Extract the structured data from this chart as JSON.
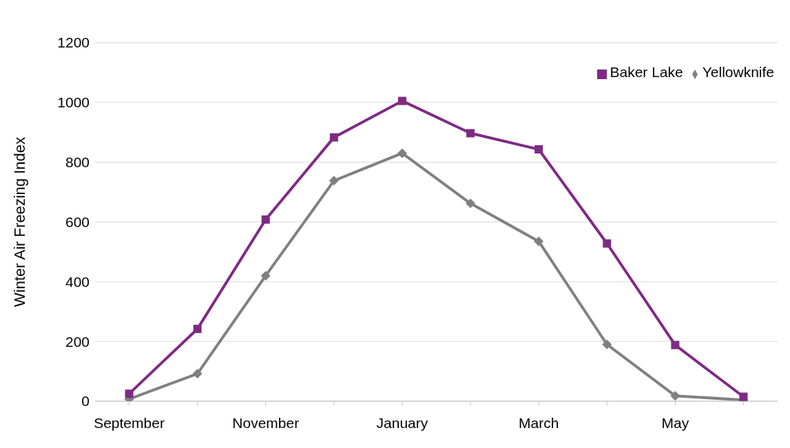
{
  "chart_data": {
    "type": "line",
    "ylabel": "Winter Air Freezing Index",
    "categories": [
      "September",
      null,
      "November",
      null,
      "January",
      null,
      "March",
      null,
      "May",
      null
    ],
    "series": [
      {
        "name": "Yellowknife",
        "color": "#808080",
        "marker": "diamond",
        "values": [
          7,
          92,
          420,
          738,
          830,
          662,
          535,
          190,
          18,
          4
        ]
      },
      {
        "name": "Baker Lake",
        "color": "#7f2a84",
        "marker": "square",
        "values": [
          25,
          242,
          608,
          883,
          1005,
          897,
          843,
          528,
          188,
          15
        ]
      }
    ],
    "ylim": [
      0,
      1200
    ],
    "yticks": [
      0,
      200,
      400,
      600,
      800,
      1000,
      1200
    ],
    "grid": "y",
    "legend": "top right"
  }
}
